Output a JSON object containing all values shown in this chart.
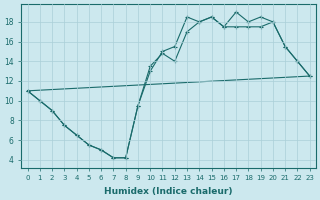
{
  "xlabel": "Humidex (Indice chaleur)",
  "bg_color": "#cce8ee",
  "line_color": "#1a6b6b",
  "grid_color": "#aacfd8",
  "x_ticks": [
    0,
    1,
    2,
    3,
    4,
    5,
    6,
    7,
    8,
    9,
    10,
    11,
    12,
    13,
    14,
    15,
    16,
    17,
    18,
    19,
    20,
    21,
    22,
    23
  ],
  "y_ticks": [
    4,
    6,
    8,
    10,
    12,
    14,
    16,
    18
  ],
  "ylim": [
    3.2,
    19.8
  ],
  "xlim": [
    -0.5,
    23.5
  ],
  "line1_x": [
    0,
    1,
    2,
    3,
    4,
    5,
    6,
    7,
    8,
    9,
    10,
    11,
    12,
    13,
    14,
    15,
    16,
    17,
    18,
    19,
    20,
    21,
    22,
    23
  ],
  "line1_y": [
    11,
    10,
    9,
    7.5,
    6.5,
    5.5,
    5.0,
    4.2,
    4.2,
    9.5,
    13.5,
    14.8,
    14.0,
    17.0,
    18.0,
    18.5,
    17.5,
    17.5,
    17.5,
    17.5,
    18.0,
    15.5,
    14.0,
    12.5
  ],
  "line2_x": [
    0,
    1,
    2,
    3,
    4,
    5,
    6,
    7,
    8,
    9,
    10,
    11,
    12,
    13,
    14,
    15,
    16,
    17,
    18,
    19,
    20,
    21,
    22,
    23
  ],
  "line2_y": [
    11,
    10,
    9,
    7.5,
    6.5,
    5.5,
    5.0,
    4.2,
    4.2,
    9.5,
    13.0,
    15.0,
    15.5,
    18.5,
    18.0,
    18.5,
    17.5,
    19.0,
    18.0,
    18.5,
    18.0,
    15.5,
    14.0,
    12.5
  ],
  "line3_x": [
    0,
    23
  ],
  "line3_y": [
    11,
    12.5
  ]
}
